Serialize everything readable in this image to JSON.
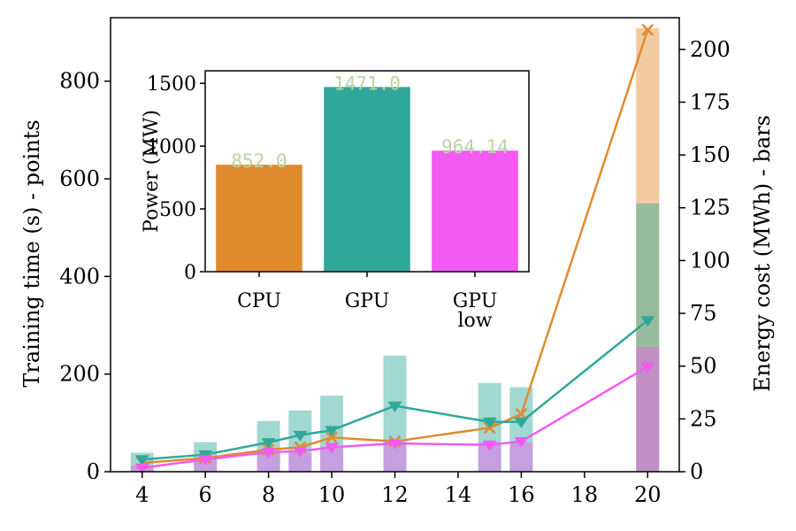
{
  "chart_data": [
    {
      "type": "line+bar",
      "title": "",
      "xlabel": "",
      "ylabel": "Training time (s) - points",
      "y2label": "Energy cost (MWh) - bars",
      "xlim": [
        3,
        21
      ],
      "ylim": [
        0,
        930
      ],
      "y2lim": [
        0,
        215
      ],
      "xticks": [
        4,
        6,
        8,
        10,
        12,
        14,
        16,
        18,
        20
      ],
      "yticks": [
        0,
        200,
        400,
        600,
        800
      ],
      "y2ticks": [
        0,
        25,
        50,
        75,
        100,
        125,
        150,
        175,
        200
      ],
      "x": [
        4,
        6,
        8,
        9,
        10,
        12,
        15,
        16,
        20
      ],
      "series": [
        {
          "kind": "line",
          "color": "#e08a2e",
          "marker": "x",
          "values": [
            18,
            28,
            45,
            50,
            70,
            62,
            90,
            118,
            905
          ]
        },
        {
          "kind": "line",
          "color": "#2fa89a",
          "marker": "triangle-down",
          "values": [
            25,
            35,
            60,
            75,
            85,
            135,
            102,
            102,
            310
          ]
        },
        {
          "kind": "line",
          "color": "#f25af2",
          "marker": "triangle-down",
          "values": [
            8,
            25,
            40,
            42,
            50,
            58,
            55,
            62,
            215
          ]
        }
      ],
      "bars": [
        {
          "color": "#e08a2e",
          "opacity": 0.45,
          "values": [
            0,
            0,
            0,
            0,
            0,
            0,
            0,
            0,
            210
          ]
        },
        {
          "color": "#2fa89a",
          "opacity": 0.45,
          "values": [
            9,
            14,
            24,
            29,
            36,
            55,
            42,
            40,
            127
          ]
        },
        {
          "color": "#f25af2",
          "opacity": 0.45,
          "values": [
            3,
            6,
            9,
            9,
            12,
            14,
            14,
            14,
            59
          ]
        }
      ]
    },
    {
      "type": "bar",
      "title": "",
      "ylabel": "Power (MW)",
      "categories": [
        "CPU",
        "GPU",
        "GPU\nlow"
      ],
      "values": [
        852.0,
        1471.0,
        964.14
      ],
      "value_labels": [
        "852.0",
        "1471.0",
        "964.14"
      ],
      "colors": [
        "#e08a2e",
        "#2fa89a",
        "#f25af2"
      ],
      "ylim": [
        0,
        1600
      ],
      "yticks": [
        0,
        500,
        1000,
        1500
      ]
    }
  ]
}
